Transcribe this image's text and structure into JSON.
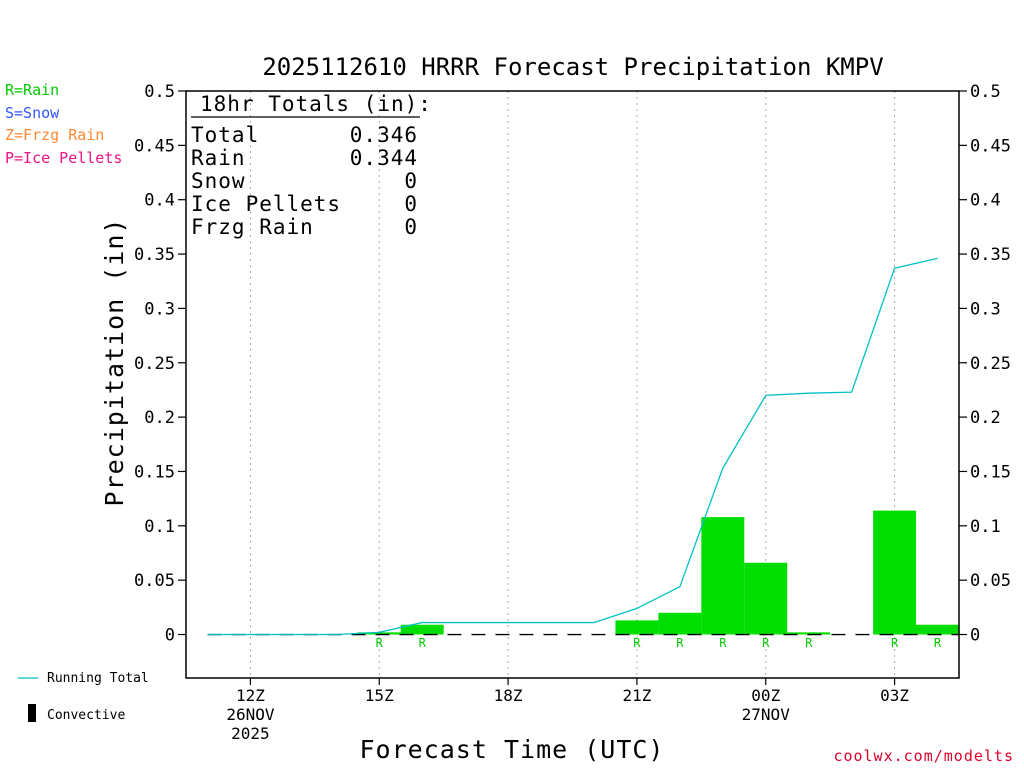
{
  "title": "2025112610 HRRR Forecast Precipitation KMPV",
  "ylabel": "Precipitation (in)",
  "xlabel": "Forecast Time (UTC)",
  "credit": "coolwx.com/modelts",
  "type_legend": [
    {
      "text": "R=Rain",
      "color": "#00cc00"
    },
    {
      "text": "S=Snow",
      "color": "#3355ff"
    },
    {
      "text": "Z=Frzg Rain",
      "color": "#ff8833"
    },
    {
      "text": "P=Ice Pellets",
      "color": "#ee1188"
    }
  ],
  "line_legend": {
    "running_total": "Running Total",
    "convective": "Convective"
  },
  "totals": {
    "header": "18hr Totals (in):",
    "rows": [
      {
        "label": "Total",
        "value": "0.346"
      },
      {
        "label": "Rain",
        "value": "0.344"
      },
      {
        "label": "Snow",
        "value": "0"
      },
      {
        "label": "Ice Pellets",
        "value": "0"
      },
      {
        "label": "Frzg Rain",
        "value": "0"
      }
    ]
  },
  "colors": {
    "bar": "#00dd00",
    "running_total": "#00c0c8",
    "grid": "#aaaaaa",
    "ptype": "#00cc00"
  },
  "chart_data": {
    "type": "bar",
    "x_unit": "forecast hour offset from 10Z 26NOV2025",
    "xlim": [
      -0.5,
      17.5
    ],
    "ylim": [
      -0.04,
      0.5
    ],
    "yticks": [
      0,
      0.05,
      0.1,
      0.15,
      0.2,
      0.25,
      0.3,
      0.35,
      0.4,
      0.45,
      0.5
    ],
    "ytick_labels": [
      "0",
      "0.05",
      "0.1",
      "0.15",
      "0.2",
      "0.25",
      "0.3",
      "0.35",
      "0.4",
      "0.45",
      "0.5"
    ],
    "xticks": [
      {
        "x": 1,
        "label": "12Z",
        "sub": [
          "26NOV",
          "2025"
        ]
      },
      {
        "x": 4,
        "label": "15Z",
        "sub": []
      },
      {
        "x": 7,
        "label": "18Z",
        "sub": []
      },
      {
        "x": 10,
        "label": "21Z",
        "sub": []
      },
      {
        "x": 13,
        "label": "00Z",
        "sub": [
          "27NOV"
        ]
      },
      {
        "x": 16,
        "label": "03Z",
        "sub": []
      }
    ],
    "gridlines_x": [
      1,
      4,
      7,
      10,
      13,
      16
    ],
    "hourly_precip": [
      {
        "x": 0,
        "value": 0,
        "type": ""
      },
      {
        "x": 1,
        "value": 0,
        "type": ""
      },
      {
        "x": 2,
        "value": 0,
        "type": ""
      },
      {
        "x": 3,
        "value": 0,
        "type": ""
      },
      {
        "x": 4,
        "value": 0.002,
        "type": "R"
      },
      {
        "x": 5,
        "value": 0.009,
        "type": "R"
      },
      {
        "x": 6,
        "value": 0,
        "type": ""
      },
      {
        "x": 7,
        "value": 0,
        "type": ""
      },
      {
        "x": 8,
        "value": 0,
        "type": ""
      },
      {
        "x": 9,
        "value": 0,
        "type": ""
      },
      {
        "x": 10,
        "value": 0.013,
        "type": "R"
      },
      {
        "x": 11,
        "value": 0.02,
        "type": "R"
      },
      {
        "x": 12,
        "value": 0.108,
        "type": "R"
      },
      {
        "x": 13,
        "value": 0.066,
        "type": "R"
      },
      {
        "x": 14,
        "value": 0.002,
        "type": "R"
      },
      {
        "x": 15,
        "value": 0,
        "type": ""
      },
      {
        "x": 16,
        "value": 0.114,
        "type": "R"
      },
      {
        "x": 17,
        "value": 0.009,
        "type": "R"
      }
    ],
    "running_total": [
      {
        "x": 0,
        "y": 0
      },
      {
        "x": 1,
        "y": 0
      },
      {
        "x": 2,
        "y": 0
      },
      {
        "x": 3,
        "y": 0
      },
      {
        "x": 4,
        "y": 0.002
      },
      {
        "x": 5,
        "y": 0.011
      },
      {
        "x": 6,
        "y": 0.011
      },
      {
        "x": 7,
        "y": 0.011
      },
      {
        "x": 8,
        "y": 0.011
      },
      {
        "x": 9,
        "y": 0.011
      },
      {
        "x": 10,
        "y": 0.024
      },
      {
        "x": 11,
        "y": 0.044
      },
      {
        "x": 12,
        "y": 0.153
      },
      {
        "x": 13,
        "y": 0.22
      },
      {
        "x": 14,
        "y": 0.222
      },
      {
        "x": 15,
        "y": 0.223
      },
      {
        "x": 16,
        "y": 0.337
      },
      {
        "x": 17,
        "y": 0.346
      }
    ]
  }
}
